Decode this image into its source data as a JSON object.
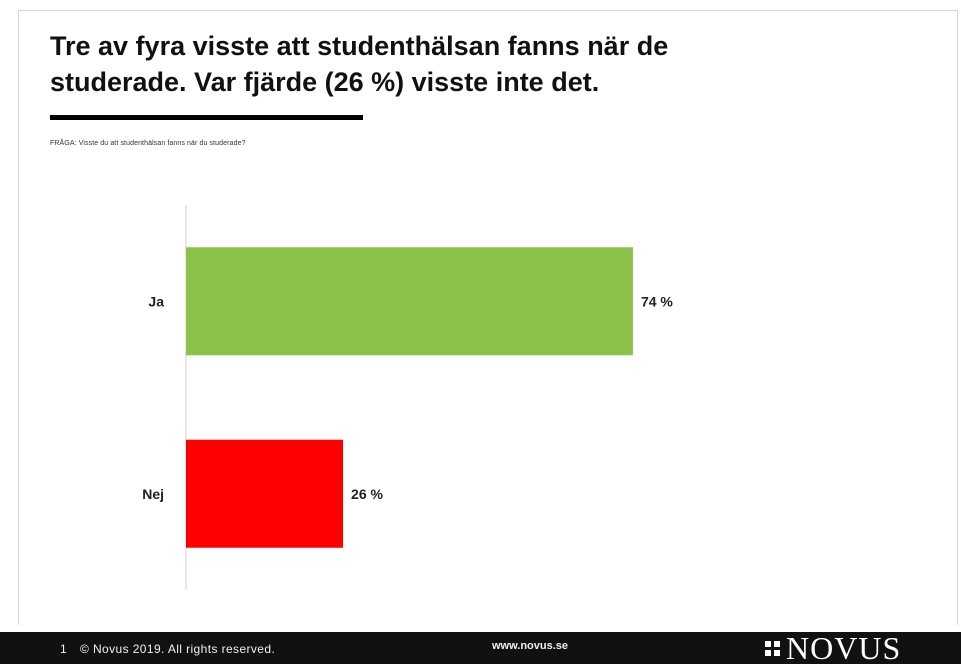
{
  "slide": {
    "headline": "Tre av fyra visste att studenthälsan fanns när de studerade. Var fjärde (26 %) visste inte det.",
    "question": "FRÅGA: Visste du att studenthälsan fanns när du studerade?"
  },
  "chart_data": {
    "type": "bar",
    "orientation": "horizontal",
    "categories": [
      "Ja",
      "Nej"
    ],
    "values": [
      74,
      26
    ],
    "value_labels": [
      "74 %",
      "26 %"
    ],
    "colors": [
      "#8bc34a",
      "#ff0000"
    ],
    "xlim": [
      0,
      100
    ],
    "grid": false,
    "legend": "none"
  },
  "footer": {
    "page_number": "1",
    "copyright": "© Novus 2019. All rights reserved.",
    "url": "www.novus.se",
    "logo_text": "NOVUS"
  }
}
